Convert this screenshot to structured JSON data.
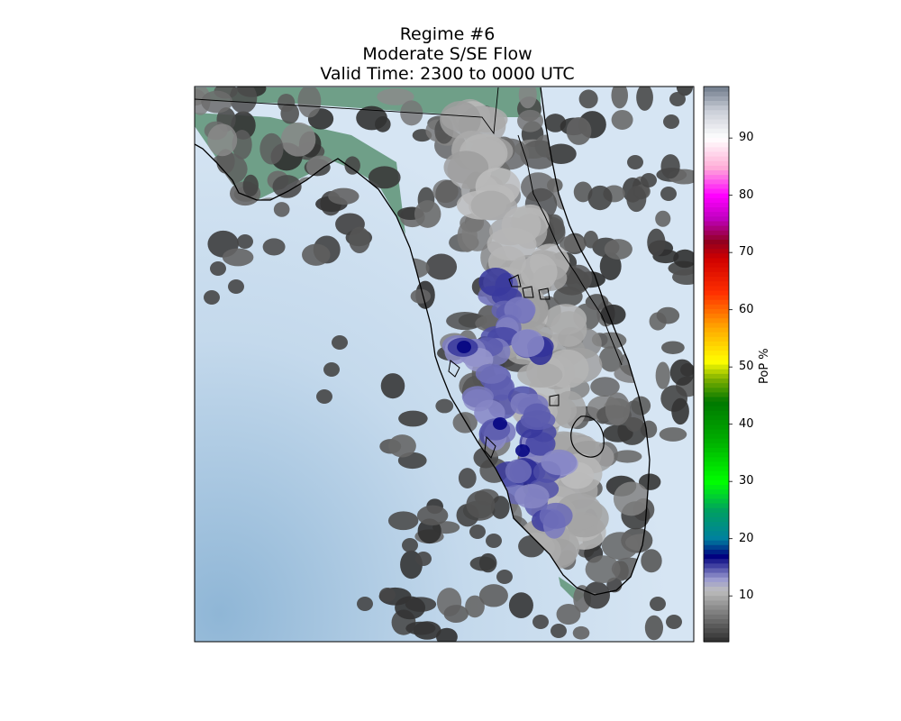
{
  "title": {
    "line1": "Regime #6",
    "line2": "Moderate S/SE Flow",
    "line3": "Valid Time: 2300 to 0000 UTC"
  },
  "colorbar": {
    "label": "PoP %",
    "ticks": [
      "10",
      "20",
      "30",
      "40",
      "50",
      "60",
      "70",
      "80",
      "90"
    ],
    "tick_values": [
      10,
      20,
      30,
      40,
      50,
      60,
      70,
      80,
      90
    ],
    "range": [
      2,
      99
    ]
  },
  "map": {
    "region": "Florida peninsula",
    "field": "probability of precipitation",
    "water_color": "#c6dcee",
    "land_color": "#6f9f88",
    "colormap": [
      {
        "v": 2,
        "c": "#2e2e2e"
      },
      {
        "v": 8,
        "c": "#8c8c8c"
      },
      {
        "v": 11,
        "c": "#bdbdbd"
      },
      {
        "v": 13,
        "c": "#9b9bd0"
      },
      {
        "v": 17,
        "c": "#00007f"
      },
      {
        "v": 20,
        "c": "#0080a0"
      },
      {
        "v": 25,
        "c": "#00a060"
      },
      {
        "v": 30,
        "c": "#00ff00"
      },
      {
        "v": 37,
        "c": "#00b000"
      },
      {
        "v": 44,
        "c": "#007800"
      },
      {
        "v": 48,
        "c": "#7fb000"
      },
      {
        "v": 51,
        "c": "#ffff00"
      },
      {
        "v": 57,
        "c": "#ffa500"
      },
      {
        "v": 63,
        "c": "#ff3000"
      },
      {
        "v": 69,
        "c": "#d00000"
      },
      {
        "v": 72,
        "c": "#900020"
      },
      {
        "v": 76,
        "c": "#c000c0"
      },
      {
        "v": 80,
        "c": "#ff00ff"
      },
      {
        "v": 85,
        "c": "#ffb0d8"
      },
      {
        "v": 90,
        "c": "#ffffff"
      },
      {
        "v": 95,
        "c": "#c8ccd6"
      },
      {
        "v": 99,
        "c": "#707c8c"
      }
    ]
  }
}
